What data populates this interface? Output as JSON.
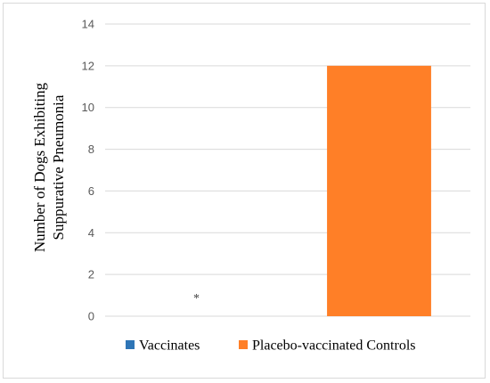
{
  "chart_data": {
    "type": "bar",
    "categories": [
      "Vaccinates",
      "Placebo-vaccinated Controls"
    ],
    "series": [
      {
        "name": "Vaccinates",
        "values": [
          0,
          null
        ],
        "color": "#2e75b6"
      },
      {
        "name": "Placebo-vaccinated Controls",
        "values": [
          null,
          12
        ],
        "color": "#ff7f27"
      }
    ],
    "ylabel_lines": [
      "Number of Dogs Exhibiting",
      "Suppurative Pneumonia"
    ],
    "ylim": [
      0,
      14
    ],
    "yticks": [
      0,
      2,
      4,
      6,
      8,
      10,
      12,
      14
    ],
    "grid": true,
    "legend_position": "bottom",
    "annotations": [
      {
        "category": "Vaccinates",
        "text": "*"
      }
    ]
  }
}
